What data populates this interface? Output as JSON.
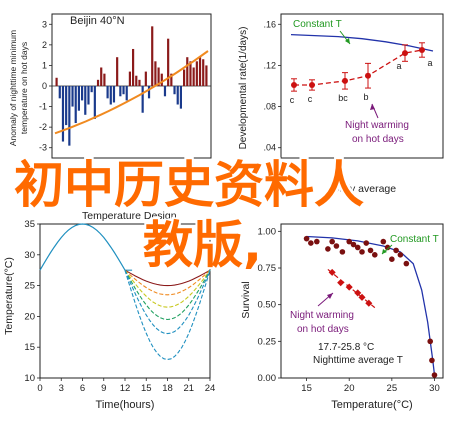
{
  "colors": {
    "bar": "#8b1a1a",
    "negbar": "#1a3a8c",
    "trend": "#f08a20",
    "model": "#2233aa",
    "red": "#cc1111",
    "arrowGreen": "#229922",
    "arrowPurple": "#7a1a7a",
    "overlay": "#ff6a00",
    "curveTop": "#8b1a1a",
    "curve2": "#f08a20",
    "curve3": "#c8c820",
    "curve4": "#20a060",
    "curve5": "#2090c0"
  },
  "panelA": {
    "title": "Beijin 40°N",
    "ylabel_lines": [
      "Anomaly of nighttime minimum",
      "temperature on hot days"
    ],
    "yticks": [
      "3",
      "2",
      "1",
      "0",
      "-1",
      "-2",
      "-3"
    ],
    "chart_data": {
      "type": "bar",
      "ylim": [
        -3.5,
        3.5
      ],
      "values": [
        0.4,
        -0.6,
        -2.7,
        -1.9,
        -2.9,
        -1.0,
        -1.8,
        -1.2,
        -0.7,
        -1.4,
        -0.9,
        -0.3,
        -1.6,
        0.3,
        0.9,
        0.6,
        -0.6,
        -0.9,
        -0.8,
        1.4,
        -0.5,
        -0.4,
        -0.7,
        0.7,
        1.8,
        0.5,
        0.3,
        -1.3,
        0.7,
        -0.6,
        2.9,
        1.2,
        0.9,
        0.6,
        -0.5,
        2.3,
        0.6,
        -0.4,
        -0.9,
        -1.1,
        0.8,
        1.4,
        1.2,
        0.9,
        1.2,
        1.4,
        1.3,
        1.0
      ],
      "trend": [
        -2.3,
        1.7
      ]
    }
  },
  "panelB": {
    "ylabel": "Developmental rate(1/days)",
    "yticks": [
      ".16",
      ".12",
      ".08",
      ".04"
    ],
    "xlabel": "Daily average",
    "label_constant": "Constant T",
    "label_night": [
      "Night warming",
      "on hot days"
    ],
    "chart_data": {
      "type": "scatter",
      "ylim": [
        0.03,
        0.17
      ],
      "points": [
        {
          "y": 0.101,
          "err": 0.006,
          "label": "c"
        },
        {
          "y": 0.101,
          "err": 0.005,
          "label": "c"
        },
        {
          "y": 0.105,
          "err": 0.008,
          "label": "bc"
        },
        {
          "y": 0.11,
          "err": 0.012,
          "label": "b"
        },
        {
          "y": 0.132,
          "err": 0.008,
          "label": "a"
        },
        {
          "y": 0.135,
          "err": 0.007,
          "label": "a"
        }
      ],
      "constant": [
        0.15,
        0.149,
        0.148,
        0.146,
        0.143,
        0.139,
        0.134
      ]
    }
  },
  "panelC": {
    "ylabel": "Temperature(°C)",
    "title": "Temperature Design",
    "xlabel": "Time(hours)",
    "yticks": [
      "35",
      "30",
      "25",
      "20",
      "15",
      "10"
    ],
    "xticks": [
      "0",
      "3",
      "6",
      "9",
      "12",
      "15",
      "18",
      "21",
      "24"
    ],
    "chart_data": {
      "type": "line",
      "xlim": [
        0,
        24
      ],
      "ylim": [
        10,
        35
      ],
      "peak": 35,
      "base": 27.5,
      "night_lows": [
        25,
        23.5,
        21.5,
        19.5,
        17.2,
        13
      ]
    }
  },
  "panelD": {
    "ylabel": "Survival",
    "yticks": [
      "1.00",
      "0.75",
      "0.50",
      "0.25",
      "0.00"
    ],
    "xticks": [
      "15",
      "20",
      "25",
      "30"
    ],
    "xlabel": "Temperature(°C)",
    "label_constant": "Constant T",
    "label_night": [
      "Night warming",
      "on hot days"
    ],
    "label_range": "17.7-25.8 °C",
    "label_avg": "Nighttime average T",
    "chart_data": {
      "type": "scatter",
      "xlim": [
        12,
        31
      ],
      "ylim": [
        0,
        1.05
      ],
      "dots": [
        [
          15,
          0.95
        ],
        [
          15.5,
          0.92
        ],
        [
          16.2,
          0.93
        ],
        [
          17.5,
          0.88
        ],
        [
          18,
          0.93
        ],
        [
          18.5,
          0.9
        ],
        [
          19.2,
          0.86
        ],
        [
          20,
          0.93
        ],
        [
          20.5,
          0.91
        ],
        [
          21,
          0.89
        ],
        [
          21.5,
          0.86
        ],
        [
          22,
          0.92
        ],
        [
          22.5,
          0.87
        ],
        [
          23,
          0.84
        ],
        [
          24,
          0.93
        ],
        [
          24.5,
          0.89
        ],
        [
          25,
          0.81
        ],
        [
          25.5,
          0.87
        ],
        [
          26,
          0.84
        ],
        [
          26.7,
          0.78
        ],
        [
          29.5,
          0.25
        ],
        [
          29.7,
          0.12
        ],
        [
          30,
          0.02
        ]
      ],
      "night": [
        [
          18,
          0.72
        ],
        [
          19,
          0.65
        ],
        [
          20,
          0.62
        ],
        [
          21,
          0.58
        ],
        [
          21.5,
          0.55
        ],
        [
          22.3,
          0.51
        ]
      ],
      "curve": [
        [
          15,
          0.965
        ],
        [
          18,
          0.955
        ],
        [
          21,
          0.935
        ],
        [
          24,
          0.9
        ],
        [
          26,
          0.86
        ],
        [
          27.5,
          0.78
        ],
        [
          28.5,
          0.6
        ],
        [
          29.2,
          0.38
        ],
        [
          29.8,
          0.12
        ],
        [
          30,
          0.02
        ]
      ]
    }
  },
  "overlay": {
    "line1": "初中历史资料人",
    "line2": "教版,"
  }
}
